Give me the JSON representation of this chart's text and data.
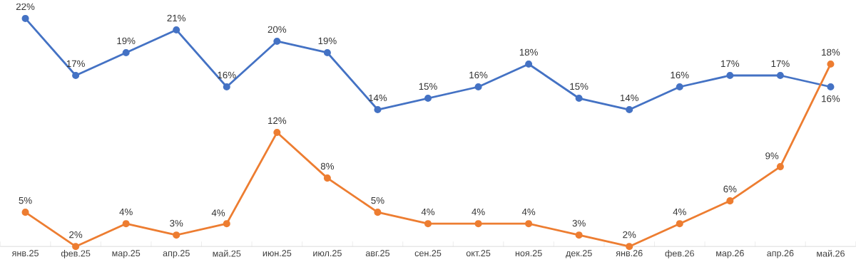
{
  "chart_data": {
    "type": "line",
    "categories": [
      "янв.25",
      "фев.25",
      "мар.25",
      "апр.25",
      "май.25",
      "июн.25",
      "июл.25",
      "авг.25",
      "сен.25",
      "окт.25",
      "ноя.25",
      "дек.25",
      "янв.26",
      "фев.26",
      "мар.26",
      "апр.26",
      "май.26"
    ],
    "series": [
      {
        "color": "#4472c4",
        "values": [
          22,
          17,
          19,
          21,
          16,
          20,
          19,
          14,
          15,
          16,
          18,
          15,
          14,
          16,
          17,
          17,
          16
        ],
        "value_labels": [
          "22%",
          "17%",
          "19%",
          "21%",
          "16%",
          "20%",
          "19%",
          "14%",
          "15%",
          "16%",
          "18%",
          "15%",
          "14%",
          "16%",
          "17%",
          "17%",
          "16%"
        ]
      },
      {
        "color": "#ed7d31",
        "values": [
          5,
          2,
          4,
          3,
          4,
          12,
          8,
          5,
          4,
          4,
          4,
          3,
          2,
          4,
          6,
          9,
          18
        ],
        "value_labels": [
          "5%",
          "2%",
          "4%",
          "3%",
          "4%",
          "12%",
          "8%",
          "5%",
          "4%",
          "4%",
          "4%",
          "3%",
          "2%",
          "4%",
          "6%",
          "9%",
          "18%"
        ]
      }
    ],
    "marker": "circle",
    "line_style": "solid"
  }
}
